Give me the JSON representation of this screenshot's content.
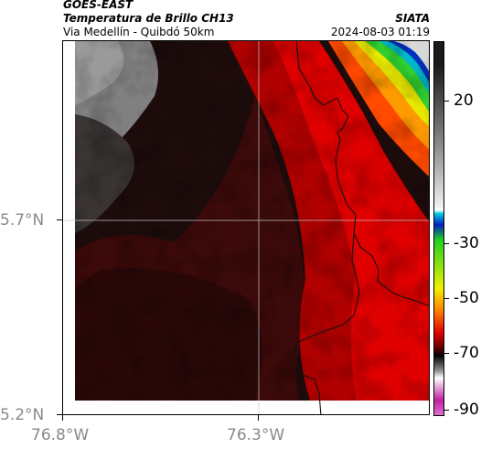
{
  "header": {
    "satellite": "GOES-EAST",
    "product": "Temperatura de Brillo CH13",
    "region": "Via Medellín - Quibdó 50km",
    "agency": "SIATA",
    "timestamp": "2024-08-03 01:19"
  },
  "map": {
    "lat_ticks": [
      "5.7°N",
      "5.2°N"
    ],
    "lon_ticks": [
      "76.8°W",
      "76.3°W"
    ],
    "gridlines": true
  },
  "colorbar": {
    "ticks": [
      "20",
      "-30",
      "-50",
      "-70",
      "-90"
    ],
    "colors": {
      "warm": "#1a1a1a",
      "mid_gray": "#8c8c8c",
      "blue": "#0020c0",
      "cyan": "#00c8e0",
      "green": "#20d020",
      "yellow": "#f0f000",
      "orange": "#ff8000",
      "red": "#e00000",
      "dark_red": "#600000",
      "black": "#000000",
      "magenta": "#c020a0"
    }
  }
}
